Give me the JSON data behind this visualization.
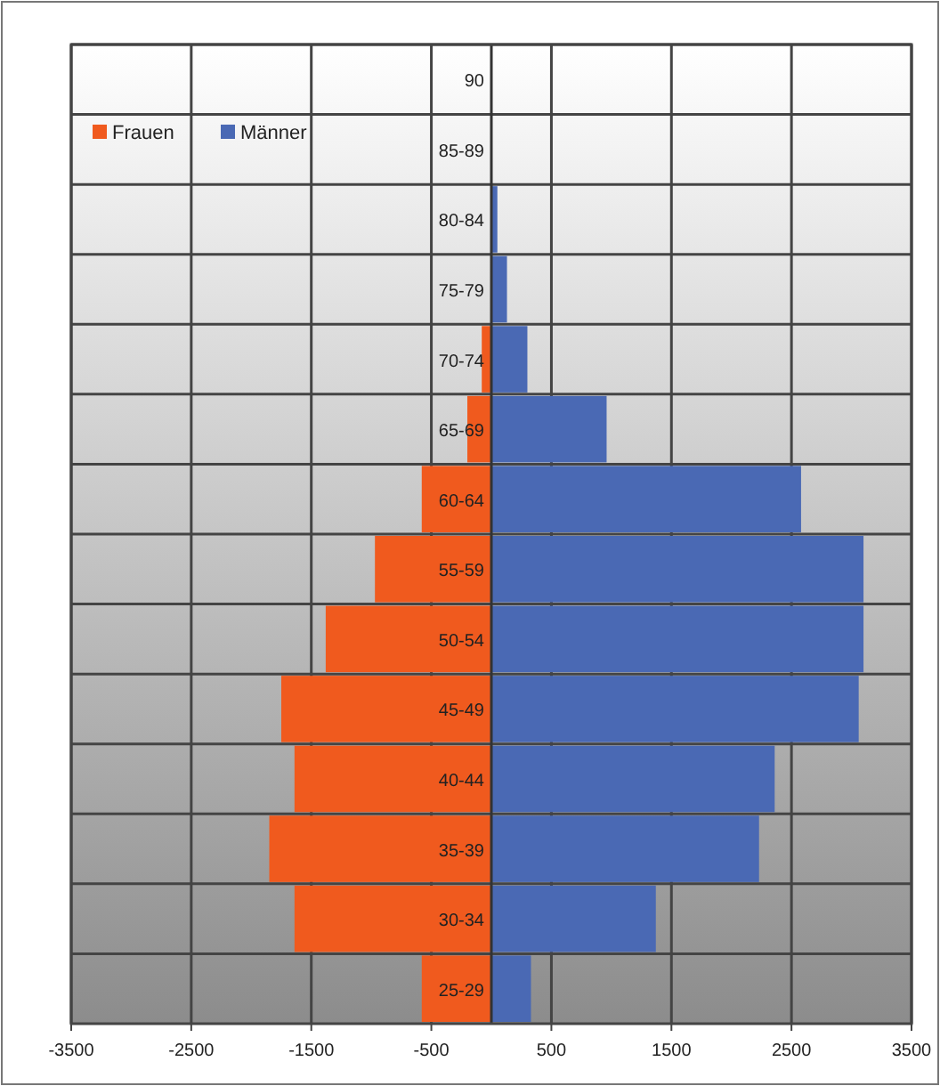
{
  "chart_data": {
    "type": "bar",
    "orientation": "horizontal",
    "stacked": true,
    "categories": [
      "90",
      "85-89",
      "80-84",
      "75-79",
      "70-74",
      "65-69",
      "60-64",
      "55-59",
      "50-54",
      "45-49",
      "40-44",
      "35-39",
      "30-34",
      "25-29"
    ],
    "series": [
      {
        "name": "Frauen",
        "color": "#f05a1e",
        "values": [
          0,
          0,
          0,
          0,
          -80,
          -200,
          -580,
          -970,
          -1380,
          -1750,
          -1640,
          -1850,
          -1640,
          -580
        ]
      },
      {
        "name": "Männer",
        "color": "#4a69b4",
        "values": [
          0,
          0,
          50,
          130,
          300,
          960,
          2580,
          3100,
          3100,
          3060,
          2360,
          2230,
          1370,
          330
        ]
      }
    ],
    "xlim": [
      -3500,
      3500
    ],
    "xticks": [
      -3500,
      -2500,
      -1500,
      -500,
      500,
      1500,
      2500,
      3500
    ],
    "grid": true,
    "legend": "top left"
  }
}
